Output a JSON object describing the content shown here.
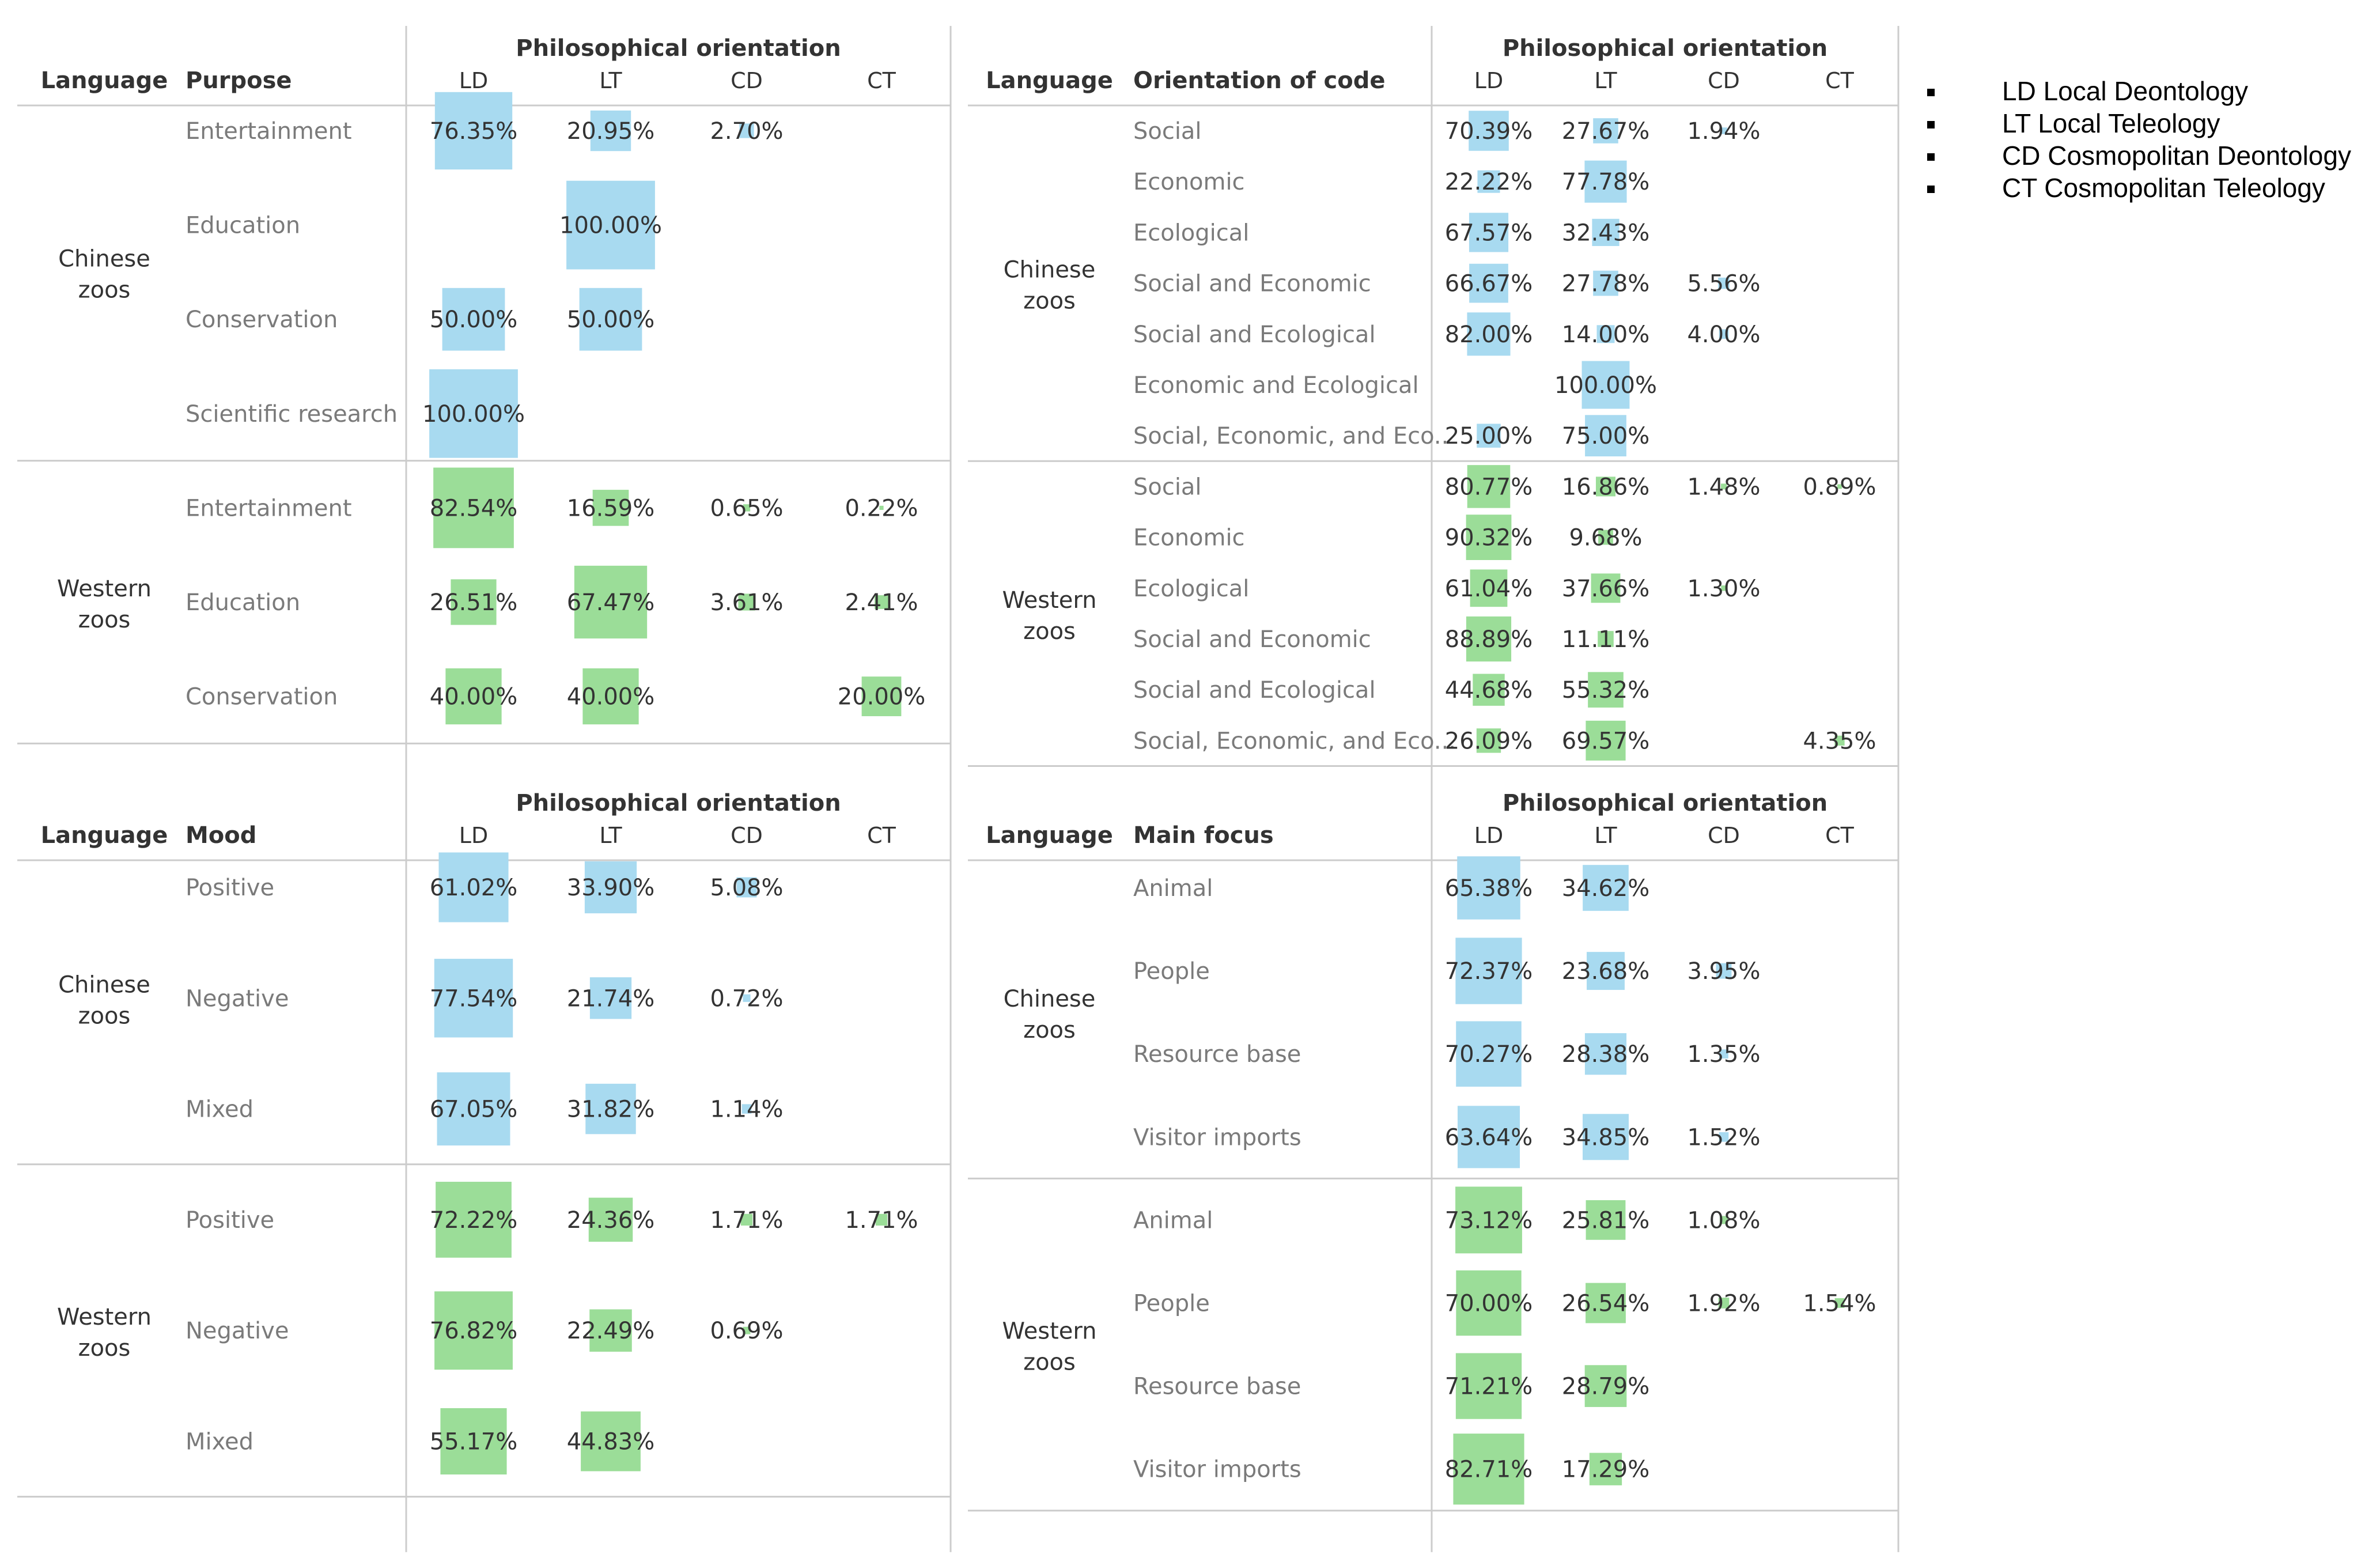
{
  "chart_data": [
    {
      "type": "table",
      "title": "Philosophical orientation",
      "row_header_1": "Language",
      "row_header_2": "Purpose",
      "columns": [
        "LD",
        "LT",
        "CD",
        "CT"
      ],
      "groups": [
        {
          "language": "Chinese\nzoos",
          "color_key": "chinese",
          "rows": [
            {
              "label": "Entertainment",
              "values": [
                "76.35%",
                "20.95%",
                "2.70%",
                null
              ]
            },
            {
              "label": "Education",
              "values": [
                null,
                "100.00%",
                null,
                null
              ]
            },
            {
              "label": "Conservation",
              "values": [
                "50.00%",
                "50.00%",
                null,
                null
              ]
            },
            {
              "label": "Scientific research",
              "values": [
                "100.00%",
                null,
                null,
                null
              ]
            }
          ]
        },
        {
          "language": "Western\nzoos",
          "color_key": "western",
          "rows": [
            {
              "label": "Entertainment",
              "values": [
                "82.54%",
                "16.59%",
                "0.65%",
                "0.22%"
              ]
            },
            {
              "label": "Education",
              "values": [
                "26.51%",
                "67.47%",
                "3.61%",
                "2.41%"
              ]
            },
            {
              "label": "Conservation",
              "values": [
                "40.00%",
                "40.00%",
                null,
                "20.00%"
              ]
            }
          ]
        }
      ]
    },
    {
      "type": "table",
      "title": "Philosophical orientation",
      "row_header_1": "Language",
      "row_header_2": "Orientation of code",
      "columns": [
        "LD",
        "LT",
        "CD",
        "CT"
      ],
      "groups": [
        {
          "language": "Chinese\nzoos",
          "color_key": "chinese",
          "rows": [
            {
              "label": "Social",
              "values": [
                "70.39%",
                "27.67%",
                "1.94%",
                null
              ]
            },
            {
              "label": "Economic",
              "values": [
                "22.22%",
                "77.78%",
                null,
                null
              ]
            },
            {
              "label": "Ecological",
              "values": [
                "67.57%",
                "32.43%",
                null,
                null
              ]
            },
            {
              "label": "Social and Economic",
              "values": [
                "66.67%",
                "27.78%",
                "5.56%",
                null
              ]
            },
            {
              "label": "Social and Ecological",
              "values": [
                "82.00%",
                "14.00%",
                "4.00%",
                null
              ]
            },
            {
              "label": "Economic and Ecological",
              "values": [
                null,
                "100.00%",
                null,
                null
              ]
            },
            {
              "label": "Social,  Economic, and Eco..",
              "values": [
                "25.00%",
                "75.00%",
                null,
                null
              ]
            }
          ]
        },
        {
          "language": "Western\nzoos",
          "color_key": "western",
          "rows": [
            {
              "label": "Social",
              "values": [
                "80.77%",
                "16.86%",
                "1.48%",
                "0.89%"
              ]
            },
            {
              "label": "Economic",
              "values": [
                "90.32%",
                "9.68%",
                null,
                null
              ]
            },
            {
              "label": "Ecological",
              "values": [
                "61.04%",
                "37.66%",
                "1.30%",
                null
              ]
            },
            {
              "label": "Social and Economic",
              "values": [
                "88.89%",
                "11.11%",
                null,
                null
              ]
            },
            {
              "label": "Social and Ecological",
              "values": [
                "44.68%",
                "55.32%",
                null,
                null
              ]
            },
            {
              "label": "Social,  Economic, and Eco...",
              "values": [
                "26.09%",
                "69.57%",
                null,
                "4.35%"
              ]
            }
          ]
        }
      ]
    },
    {
      "type": "table",
      "title": "Philosophical orientation",
      "row_header_1": "Language",
      "row_header_2": "Mood",
      "columns": [
        "LD",
        "LT",
        "CD",
        "CT"
      ],
      "groups": [
        {
          "language": "Chinese\nzoos",
          "color_key": "chinese",
          "rows": [
            {
              "label": "Positive",
              "values": [
                "61.02%",
                "33.90%",
                "5.08%",
                null
              ]
            },
            {
              "label": "Negative",
              "values": [
                "77.54%",
                "21.74%",
                "0.72%",
                null
              ]
            },
            {
              "label": "Mixed",
              "values": [
                "67.05%",
                "31.82%",
                "1.14%",
                null
              ]
            }
          ]
        },
        {
          "language": "Western\nzoos",
          "color_key": "western",
          "rows": [
            {
              "label": "Positive",
              "values": [
                "72.22%",
                "24.36%",
                "1.71%",
                "1.71%"
              ]
            },
            {
              "label": "Negative",
              "values": [
                "76.82%",
                "22.49%",
                "0.69%",
                null
              ]
            },
            {
              "label": "Mixed",
              "values": [
                "55.17%",
                "44.83%",
                null,
                null
              ]
            }
          ]
        }
      ]
    },
    {
      "type": "table",
      "title": "Philosophical orientation",
      "row_header_1": "Language",
      "row_header_2": "Main focus",
      "columns": [
        "LD",
        "LT",
        "CD",
        "CT"
      ],
      "groups": [
        {
          "language": "Chinese\nzoos",
          "color_key": "chinese",
          "rows": [
            {
              "label": "Animal",
              "values": [
                "65.38%",
                "34.62%",
                null,
                null
              ]
            },
            {
              "label": "People",
              "values": [
                "72.37%",
                "23.68%",
                "3.95%",
                null
              ]
            },
            {
              "label": "Resource base",
              "values": [
                "70.27%",
                "28.38%",
                "1.35%",
                null
              ]
            },
            {
              "label": "Visitor imports",
              "values": [
                "63.64%",
                "34.85%",
                "1.52%",
                null
              ]
            }
          ]
        },
        {
          "language": "Western\nzoos",
          "color_key": "western",
          "rows": [
            {
              "label": "Animal",
              "values": [
                "73.12%",
                "25.81%",
                "1.08%",
                null
              ]
            },
            {
              "label": "People",
              "values": [
                "70.00%",
                "26.54%",
                "1.92%",
                "1.54%"
              ]
            },
            {
              "label": "Resource base",
              "values": [
                "71.21%",
                "28.79%",
                null,
                null
              ]
            },
            {
              "label": "Visitor imports",
              "values": [
                "82.71%",
                "17.29%",
                null,
                null
              ]
            }
          ]
        }
      ]
    }
  ],
  "legend": [
    "LD Local Deontology",
    "LT Local Teleology",
    "CD Cosmopolitan Deontology",
    "CT Cosmopolitan Teleology"
  ],
  "colors": {
    "chinese": "#a8daf0",
    "western": "#9bdd98",
    "text_dark": "#333333",
    "text_light": "#7a7a7a",
    "grid": "#cccccc"
  }
}
